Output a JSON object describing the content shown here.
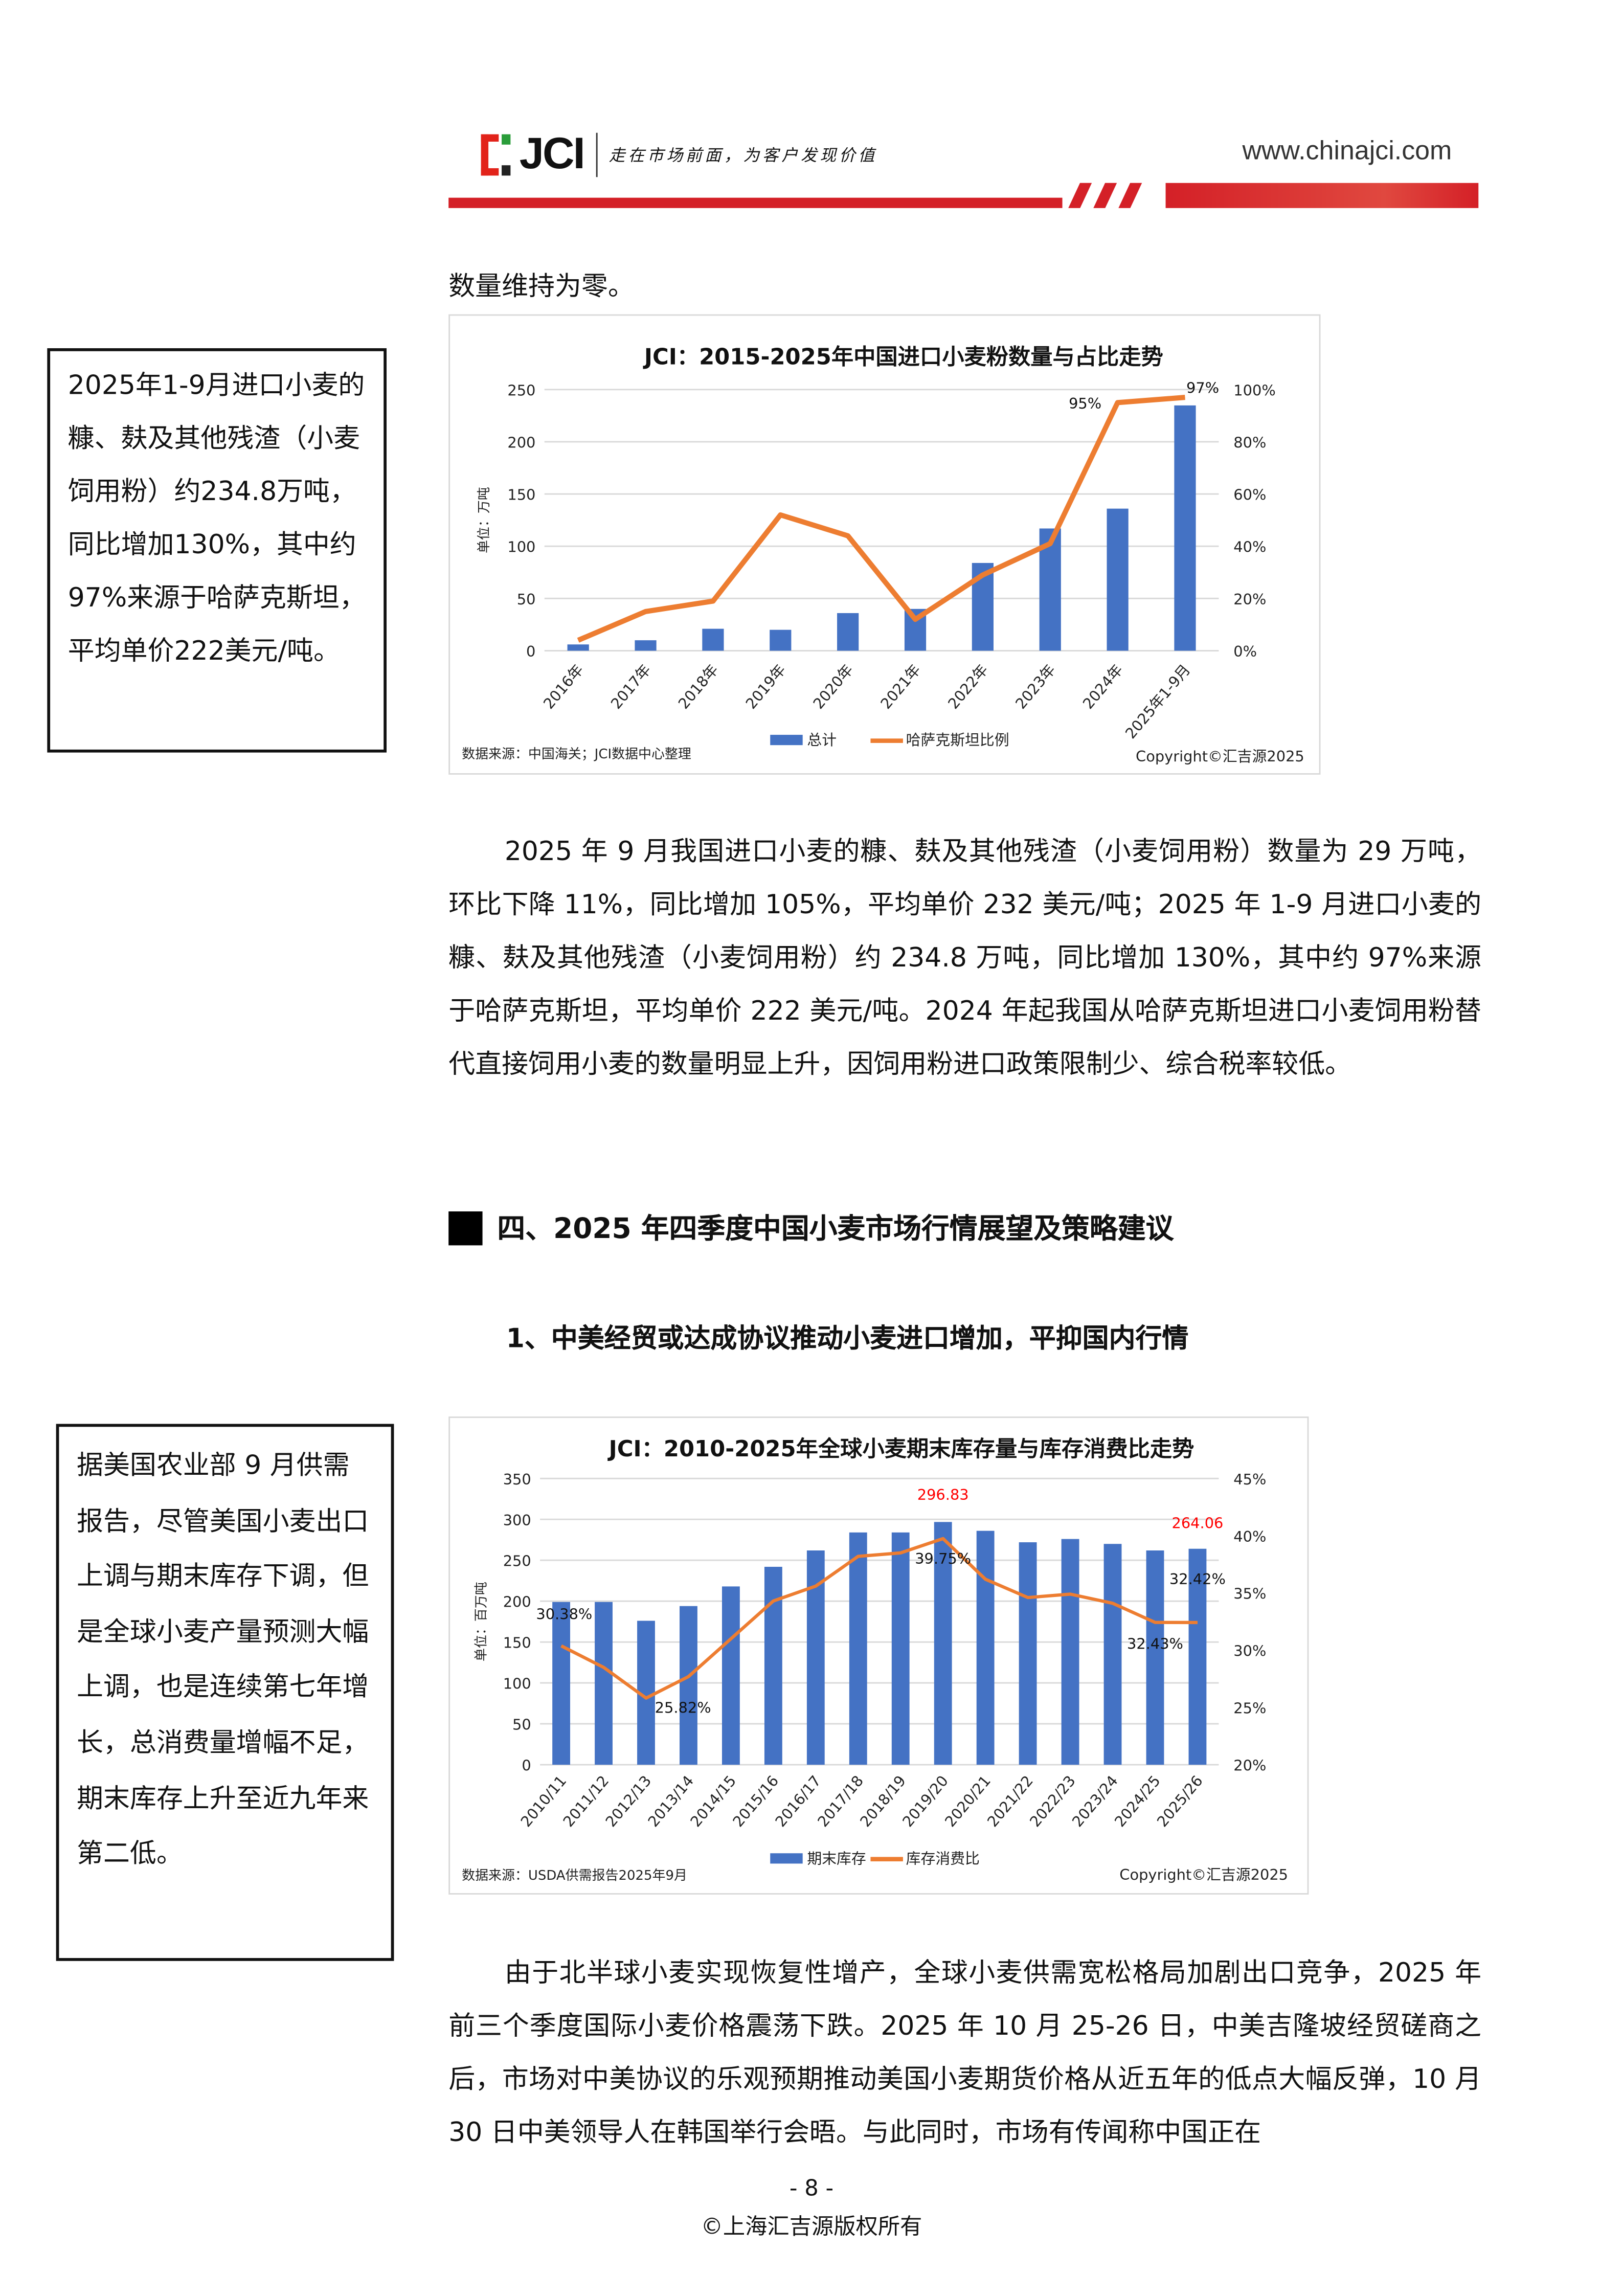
{
  "header": {
    "logo_text": "JCI",
    "slogan": "走在市场前面，为客户发现价值",
    "url": "www.chinajci.com"
  },
  "top_text": "数量维持为零。",
  "sidebox1": "2025年1-9月进口小麦的糠、麸及其他残渣（小麦饲用粉）约234.8万吨，同比增加130%，其中约97%来源于哈萨克斯坦，平均单价222美元/吨。",
  "paragraph1": "2025 年 9 月我国进口小麦的糠、麸及其他残渣（小麦饲用粉）数量为 29 万吨，环比下降 11%，同比增加 105%，平均单价 232 美元/吨；2025 年 1-9 月进口小麦的糠、麸及其他残渣（小麦饲用粉）约 234.8 万吨，同比增加 130%，其中约 97%来源于哈萨克斯坦，平均单价 222 美元/吨。2024 年起我国从哈萨克斯坦进口小麦饲用粉替代直接饲用小麦的数量明显上升，因饲用粉进口政策限制少、综合税率较低。",
  "section_heading": "四、2025 年四季度中国小麦市场行情展望及策略建议",
  "subheading": "1、中美经贸或达成协议推动小麦进口增加，平抑国内行情",
  "sidebox2": "据美国农业部 9 月供需报告，尽管美国小麦出口上调与期末库存下调，但是全球小麦产量预测大幅上调，也是连续第七年增长，总消费量增幅不足，期末库存上升至近九年来第二低。",
  "paragraph2": "由于北半球小麦实现恢复性增产，全球小麦供需宽松格局加剧出口竞争，2025 年前三个季度国际小麦价格震荡下跌。2025 年 10 月 25-26 日，中美吉隆坡经贸磋商之后，市场对中美协议的乐观预期推动美国小麦期货价格从近五年的低点大幅反弹，10 月 30 日中美领导人在韩国举行会晤。与此同时，市场有传闻称中国正在",
  "footer": {
    "page": "- 8 -",
    "copyright": "©上海汇吉源版权所有"
  },
  "chart_data": [
    {
      "type": "bar+line",
      "title": "JCI：2015-2025年中国进口小麦粉数量与占比走势",
      "ylabel": "单位：万吨",
      "ylim": [
        0,
        250
      ],
      "yticks": [
        "0",
        "50",
        "100",
        "150",
        "200",
        "250"
      ],
      "y2lim": [
        0,
        100
      ],
      "y2ticks": [
        "0%",
        "20%",
        "40%",
        "60%",
        "80%",
        "100%"
      ],
      "categories": [
        "2016年",
        "2017年",
        "2018年",
        "2019年",
        "2020年",
        "2021年",
        "2022年",
        "2023年",
        "2024年",
        "2025年1-9月"
      ],
      "series": [
        {
          "name": "总计",
          "type": "bar",
          "axis": "left",
          "color": "#4472c4",
          "values": [
            6,
            10,
            21,
            20,
            36,
            40,
            84,
            117,
            136,
            234.8
          ]
        },
        {
          "name": "哈萨克斯坦比例",
          "type": "line",
          "axis": "right",
          "color": "#ed7d31",
          "values": [
            4,
            15,
            19,
            52,
            44,
            12,
            29,
            41,
            95,
            97
          ]
        }
      ],
      "data_labels": [
        {
          "series": 1,
          "index": 8,
          "text": "95%",
          "color": "#111111"
        },
        {
          "series": 1,
          "index": 9,
          "text": "97%",
          "color": "#111111"
        }
      ],
      "grid": true,
      "legend": "bottom",
      "source": "数据来源：中国海关；JCI数据中心整理",
      "copyright": "Copyright©汇吉源2025"
    },
    {
      "type": "bar+line",
      "title": "JCI：2010-2025年全球小麦期末库存量与库存消费比走势",
      "ylabel": "单位：百万吨",
      "ylim": [
        0,
        350
      ],
      "yticks": [
        "0",
        "50",
        "100",
        "150",
        "200",
        "250",
        "300",
        "350"
      ],
      "y2lim": [
        20,
        45
      ],
      "y2ticks": [
        "20%",
        "25%",
        "30%",
        "35%",
        "40%",
        "45%"
      ],
      "categories": [
        "2010/11",
        "2011/12",
        "2012/13",
        "2013/14",
        "2014/15",
        "2015/16",
        "2016/17",
        "2017/18",
        "2018/19",
        "2019/20",
        "2020/21",
        "2021/22",
        "2022/23",
        "2023/24",
        "2024/25",
        "2025/26"
      ],
      "series": [
        {
          "name": "期末库存",
          "type": "bar",
          "axis": "left",
          "color": "#4472c4",
          "values": [
            199,
            199,
            176,
            194,
            218,
            242,
            262,
            284,
            284,
            296.83,
            286,
            272,
            276,
            270,
            262,
            264.06
          ]
        },
        {
          "name": "库存消费比",
          "type": "line",
          "axis": "right",
          "color": "#ed7d31",
          "values": [
            30.38,
            28.5,
            25.82,
            27.7,
            31.0,
            34.3,
            35.6,
            38.2,
            38.5,
            39.75,
            36.2,
            34.6,
            34.9,
            34.1,
            32.43,
            32.42
          ]
        }
      ],
      "data_labels": [
        {
          "series": 0,
          "index": 9,
          "text": "296.83",
          "color": "#ff0000"
        },
        {
          "series": 0,
          "index": 15,
          "text": "264.06",
          "color": "#ff0000"
        },
        {
          "series": 1,
          "index": 0,
          "text": "30.38%",
          "color": "#111111"
        },
        {
          "series": 1,
          "index": 2,
          "text": "25.82%",
          "color": "#111111"
        },
        {
          "series": 1,
          "index": 9,
          "text": "39.75%",
          "color": "#111111"
        },
        {
          "series": 1,
          "index": 14,
          "text": "32.43%",
          "color": "#111111"
        },
        {
          "series": 1,
          "index": 15,
          "text": "32.42%",
          "color": "#111111"
        }
      ],
      "grid": true,
      "legend": "bottom",
      "source": "数据来源：USDA供需报告2025年9月",
      "copyright": "Copyright©汇吉源2025"
    }
  ]
}
